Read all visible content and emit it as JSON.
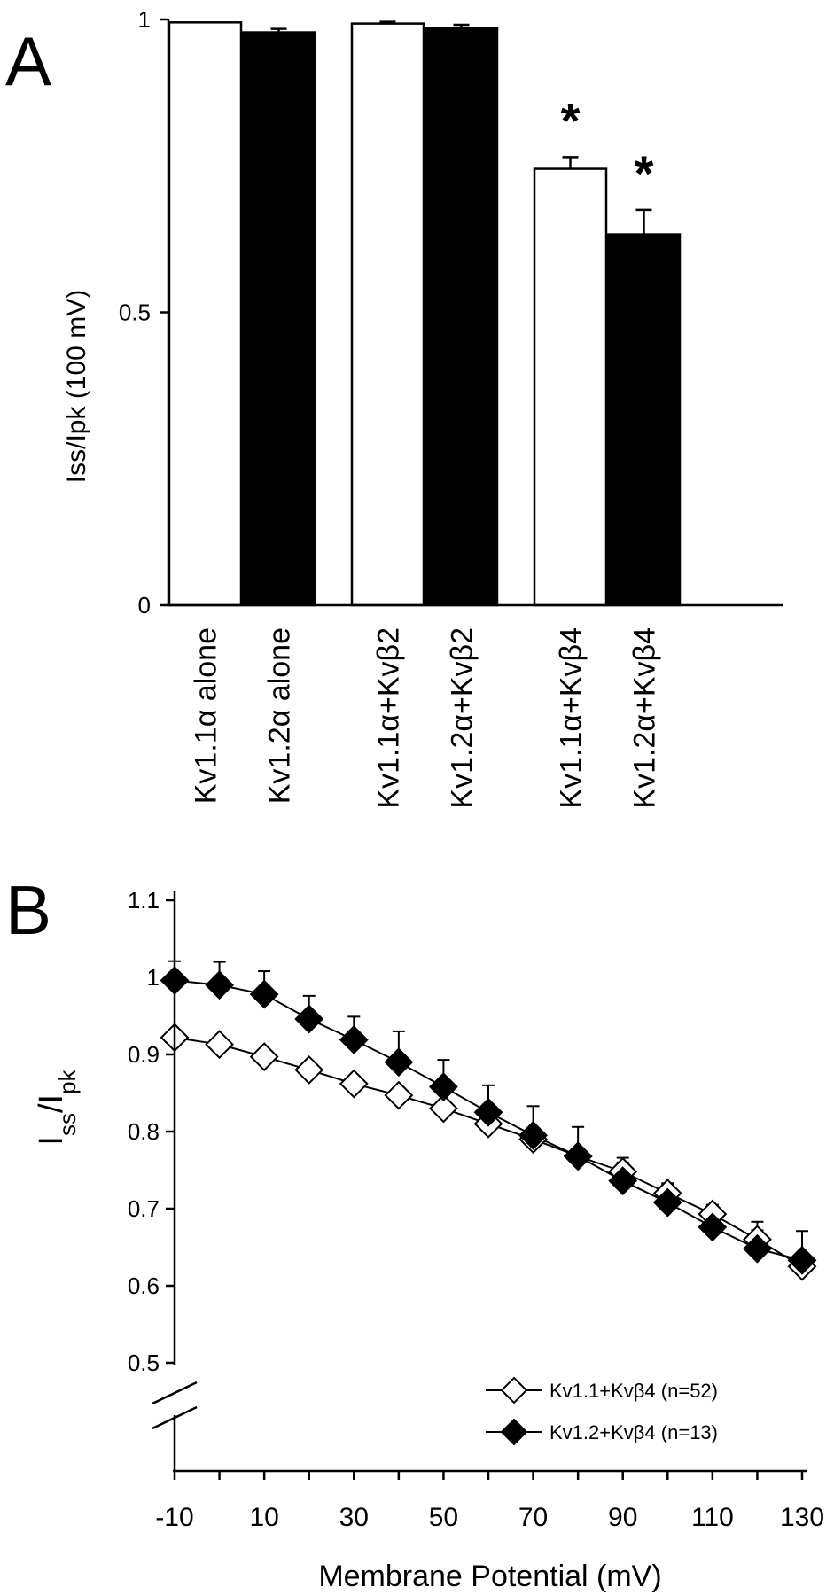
{
  "panels": {
    "a_letter": "A",
    "b_letter": "B"
  },
  "chart_data": [
    {
      "type": "bar",
      "panel": "A",
      "ylabel": "Iss/Ipk (100 mV)",
      "ylim": [
        0,
        1
      ],
      "yticks": [
        "0",
        "0.5",
        "1"
      ],
      "categories": [
        "Kv1.1α alone",
        "Kv1.2α alone",
        "Kv1.1α+Kvβ2",
        "Kv1.2α+Kvβ2",
        "Kv1.1α+Kvβ4",
        "Kv1.2α+Kvβ4"
      ],
      "values": [
        0.995,
        0.978,
        0.993,
        0.985,
        0.745,
        0.633
      ],
      "errors": [
        0,
        0.006,
        0.003,
        0.006,
        0.02,
        0.042
      ],
      "fills": [
        "#ffffff",
        "#000000",
        "#ffffff",
        "#000000",
        "#ffffff",
        "#000000"
      ],
      "significance": [
        "",
        "",
        "",
        "",
        "*",
        "*"
      ],
      "colors": {
        "open": "#ffffff",
        "filled": "#000000"
      }
    },
    {
      "type": "line",
      "panel": "B",
      "ylabel_main": "I",
      "ylabel_sub1": "ss",
      "ylabel_sep": "/I",
      "ylabel_sub2": "pk",
      "xlabel": "Membrane Potential (mV)",
      "xlim": [
        -10,
        130
      ],
      "ylim": [
        0.5,
        1.1
      ],
      "axis_break": true,
      "xticks": [
        "-10",
        "10",
        "30",
        "50",
        "70",
        "90",
        "110",
        "130"
      ],
      "yticks": [
        "0.5",
        "0.6",
        "0.7",
        "0.8",
        "0.9",
        "1",
        "1.1"
      ],
      "x": [
        -10,
        0,
        10,
        20,
        30,
        40,
        50,
        60,
        70,
        80,
        90,
        100,
        110,
        120,
        130
      ],
      "legend_position": "bottom-right",
      "series": [
        {
          "name": "Kv1.1+Kvβ4 (n=52)",
          "marker": "open-diamond",
          "values": [
            0.922,
            0.913,
            0.897,
            0.88,
            0.862,
            0.847,
            0.83,
            0.81,
            0.79,
            0.768,
            0.748,
            0.72,
            0.693,
            0.66,
            0.625
          ],
          "errors": [
            0,
            0,
            0,
            0,
            0,
            0,
            0,
            0,
            0,
            0,
            0.012,
            0.012,
            0.012,
            0.012,
            0
          ]
        },
        {
          "name": "Kv1.2+Kvβ4 (n=13)",
          "marker": "filled-diamond",
          "values": [
            0.996,
            0.99,
            0.978,
            0.946,
            0.919,
            0.89,
            0.858,
            0.825,
            0.795,
            0.768,
            0.736,
            0.708,
            0.676,
            0.648,
            0.633
          ],
          "errors": [
            0.025,
            0.03,
            0.03,
            0.03,
            0.03,
            0.04,
            0.035,
            0.035,
            0.038,
            0.038,
            0.03,
            0.025,
            0.02,
            0.035,
            0.038
          ]
        }
      ]
    }
  ]
}
